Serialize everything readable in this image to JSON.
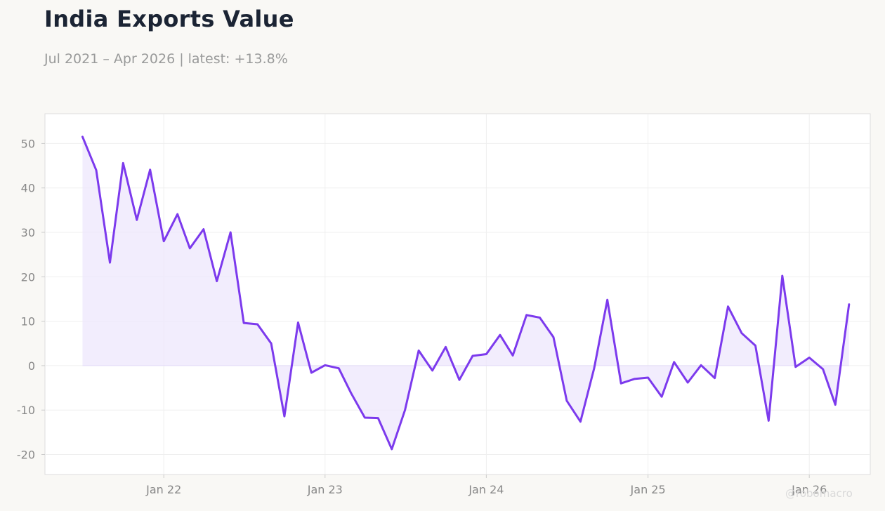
{
  "header": {
    "title": "India Exports Value",
    "subtitle": "Jul 2021 – Apr 2026 | latest: +13.8%"
  },
  "watermark": "@robomacro",
  "colors": {
    "line": "#7c3aed",
    "area": "#ede7fc",
    "plot_background": "#ffffff",
    "page_background": "#f9f8f5",
    "grid": "#efefef"
  },
  "chart_data": {
    "type": "area",
    "grid": true,
    "legend": "none",
    "xlabel": "",
    "ylabel": "",
    "ylim": [
      -24.5,
      56.7
    ],
    "xlim": [
      "2021-04-07",
      "2026-05-19"
    ],
    "y_ticks": [
      -20,
      -10,
      0,
      10,
      20,
      30,
      40,
      50
    ],
    "x_ticks": [
      {
        "date": "2022-01-01",
        "label": "Jan 22"
      },
      {
        "date": "2023-01-01",
        "label": "Jan 23"
      },
      {
        "date": "2024-01-01",
        "label": "Jan 24"
      },
      {
        "date": "2025-01-01",
        "label": "Jan 25"
      },
      {
        "date": "2026-01-01",
        "label": "Jan 26"
      }
    ],
    "series": [
      {
        "values": [
          {
            "x": "2021-07-01",
            "y": 51.5
          },
          {
            "x": "2021-08-01",
            "y": 44.0
          },
          {
            "x": "2021-09-01",
            "y": 23.2
          },
          {
            "x": "2021-10-01",
            "y": 45.6
          },
          {
            "x": "2021-11-01",
            "y": 32.8
          },
          {
            "x": "2021-12-01",
            "y": 44.1
          },
          {
            "x": "2022-01-01",
            "y": 28.0
          },
          {
            "x": "2022-02-01",
            "y": 34.1
          },
          {
            "x": "2022-03-01",
            "y": 26.4
          },
          {
            "x": "2022-04-01",
            "y": 30.7
          },
          {
            "x": "2022-05-01",
            "y": 19.0
          },
          {
            "x": "2022-06-01",
            "y": 30.0
          },
          {
            "x": "2022-07-01",
            "y": 9.6
          },
          {
            "x": "2022-08-01",
            "y": 9.3
          },
          {
            "x": "2022-09-01",
            "y": 5.0
          },
          {
            "x": "2022-10-01",
            "y": -11.4
          },
          {
            "x": "2022-11-01",
            "y": 9.7
          },
          {
            "x": "2022-12-01",
            "y": -1.6
          },
          {
            "x": "2023-01-01",
            "y": 0.1
          },
          {
            "x": "2023-02-01",
            "y": -0.6
          },
          {
            "x": "2023-03-01",
            "y": -6.2
          },
          {
            "x": "2023-04-01",
            "y": -11.7
          },
          {
            "x": "2023-05-01",
            "y": -11.8
          },
          {
            "x": "2023-06-01",
            "y": -18.8
          },
          {
            "x": "2023-07-01",
            "y": -10.0
          },
          {
            "x": "2023-08-01",
            "y": 3.4
          },
          {
            "x": "2023-09-01",
            "y": -1.1
          },
          {
            "x": "2023-10-01",
            "y": 4.2
          },
          {
            "x": "2023-11-01",
            "y": -3.2
          },
          {
            "x": "2023-12-01",
            "y": 2.2
          },
          {
            "x": "2024-01-01",
            "y": 2.6
          },
          {
            "x": "2024-02-01",
            "y": 6.9
          },
          {
            "x": "2024-03-01",
            "y": 2.3
          },
          {
            "x": "2024-04-01",
            "y": 11.4
          },
          {
            "x": "2024-05-01",
            "y": 10.8
          },
          {
            "x": "2024-06-01",
            "y": 6.4
          },
          {
            "x": "2024-07-01",
            "y": -7.9
          },
          {
            "x": "2024-08-01",
            "y": -12.6
          },
          {
            "x": "2024-09-01",
            "y": -0.6
          },
          {
            "x": "2024-10-01",
            "y": 14.8
          },
          {
            "x": "2024-11-01",
            "y": -4.0
          },
          {
            "x": "2024-12-01",
            "y": -3.0
          },
          {
            "x": "2025-01-01",
            "y": -2.7
          },
          {
            "x": "2025-02-01",
            "y": -7.0
          },
          {
            "x": "2025-03-01",
            "y": 0.8
          },
          {
            "x": "2025-04-01",
            "y": -3.8
          },
          {
            "x": "2025-05-01",
            "y": 0.1
          },
          {
            "x": "2025-06-01",
            "y": -2.8
          },
          {
            "x": "2025-07-01",
            "y": 13.3
          },
          {
            "x": "2025-08-01",
            "y": 7.3
          },
          {
            "x": "2025-09-01",
            "y": 4.5
          },
          {
            "x": "2025-10-01",
            "y": -12.4
          },
          {
            "x": "2025-11-01",
            "y": 20.2
          },
          {
            "x": "2025-12-01",
            "y": -0.3
          },
          {
            "x": "2026-01-01",
            "y": 1.8
          },
          {
            "x": "2026-02-01",
            "y": -0.8
          },
          {
            "x": "2026-03-01",
            "y": -8.8
          },
          {
            "x": "2026-04-01",
            "y": 13.8
          }
        ]
      }
    ]
  }
}
